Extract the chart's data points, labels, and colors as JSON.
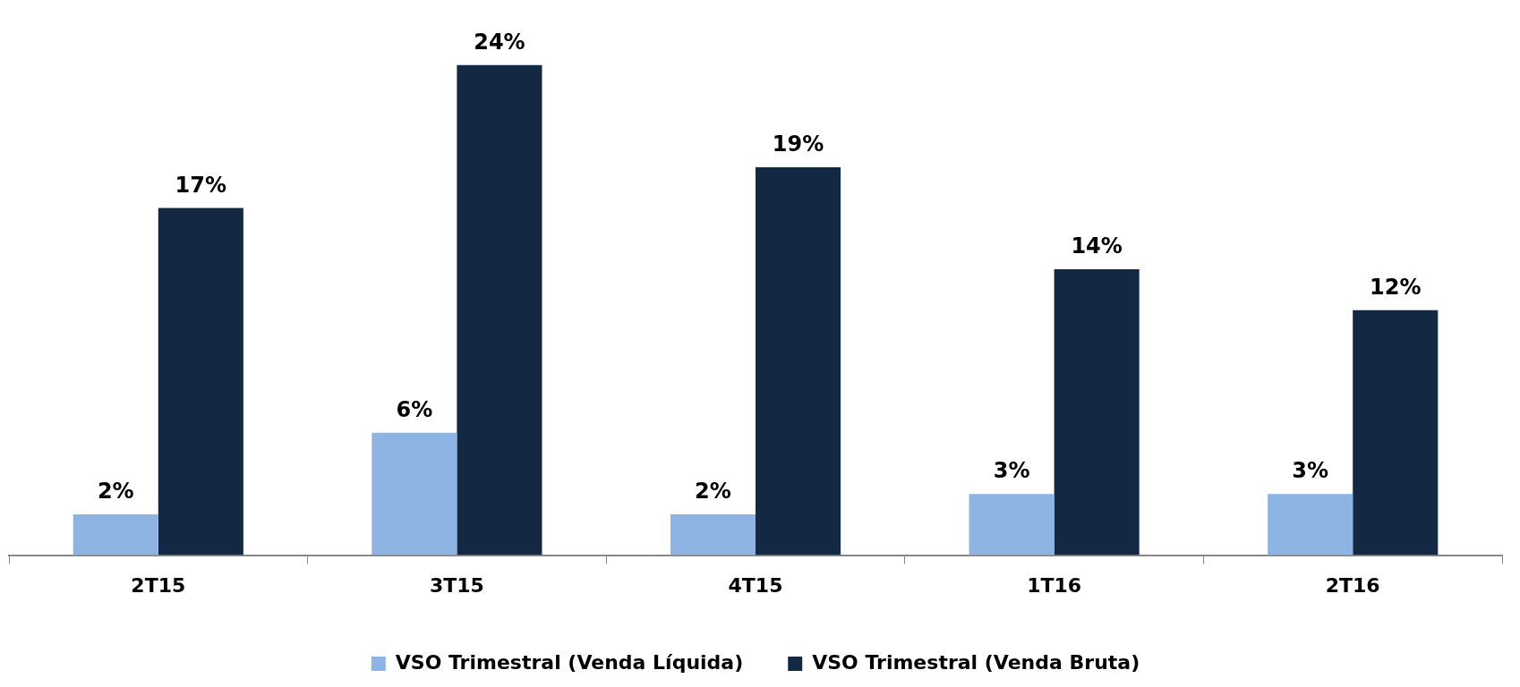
{
  "chart_data": {
    "type": "bar",
    "categories": [
      "2T15",
      "3T15",
      "4T15",
      "1T16",
      "2T16"
    ],
    "series": [
      {
        "name": "VSO Trimestral (Venda Líquida)",
        "color": "#8eb4e3",
        "values": [
          2,
          6,
          2,
          3,
          3
        ],
        "value_labels": [
          "2%",
          "6%",
          "2%",
          "3%",
          "3%"
        ]
      },
      {
        "name": "VSO Trimestral (Venda Bruta)",
        "color": "#132843",
        "values": [
          17,
          24,
          19,
          14,
          12
        ],
        "value_labels": [
          "17%",
          "24%",
          "19%",
          "14%",
          "12%"
        ]
      }
    ],
    "legend": "bottom",
    "grid": false
  }
}
